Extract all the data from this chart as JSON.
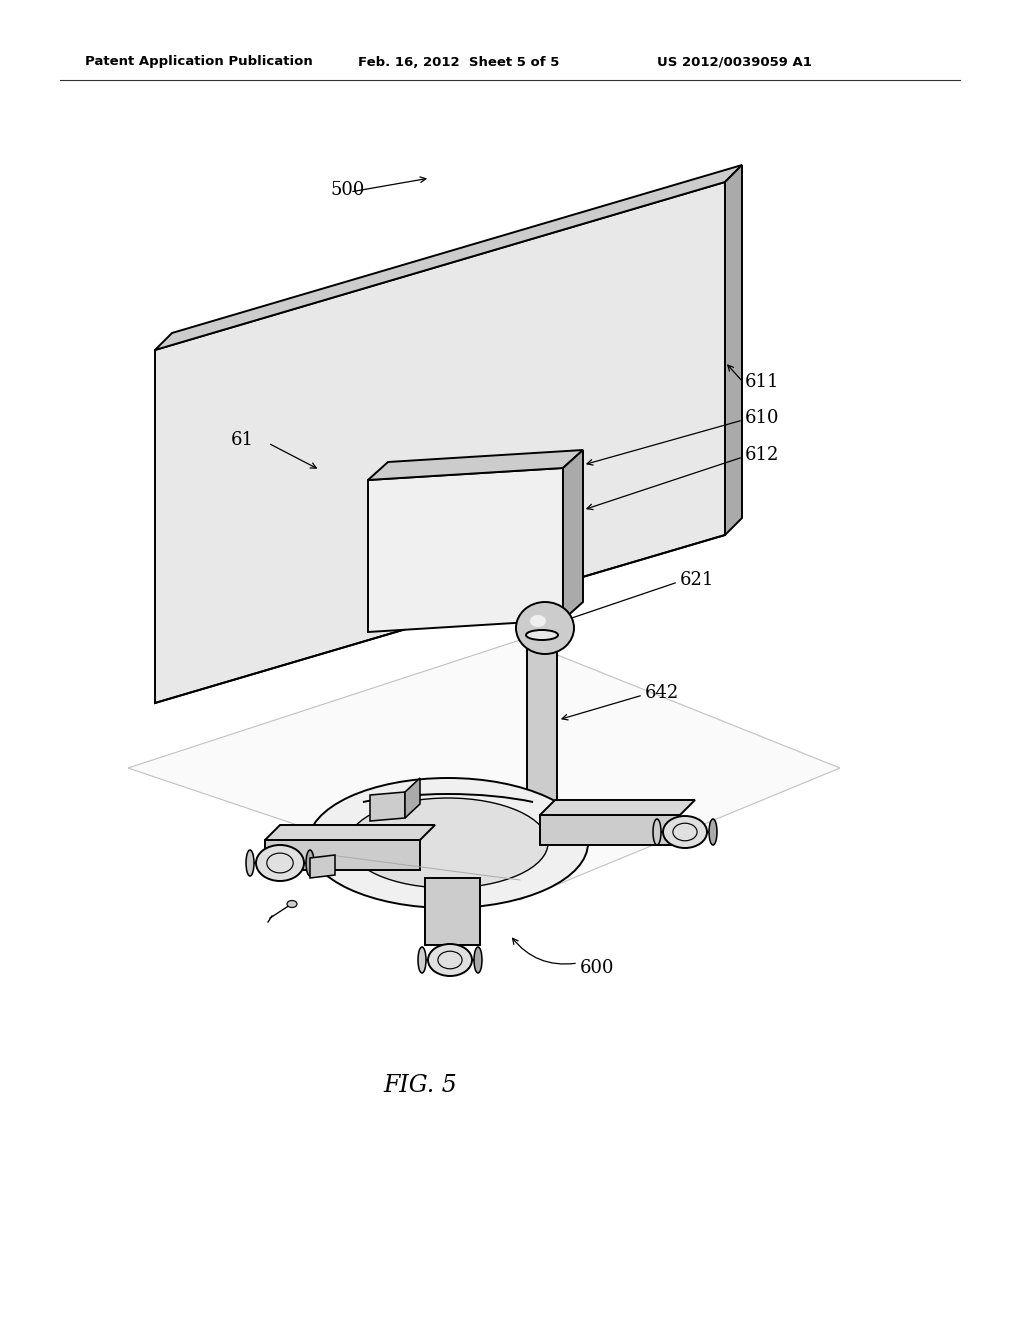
{
  "header_left": "Patent Application Publication",
  "header_mid": "Feb. 16, 2012  Sheet 5 of 5",
  "header_right": "US 2012/0039059 A1",
  "fig_label": "FIG. 5",
  "background": "#ffffff",
  "line_color": "#000000",
  "gray_light": "#e8e8e8",
  "gray_mid": "#cccccc",
  "gray_dark": "#aaaaaa"
}
